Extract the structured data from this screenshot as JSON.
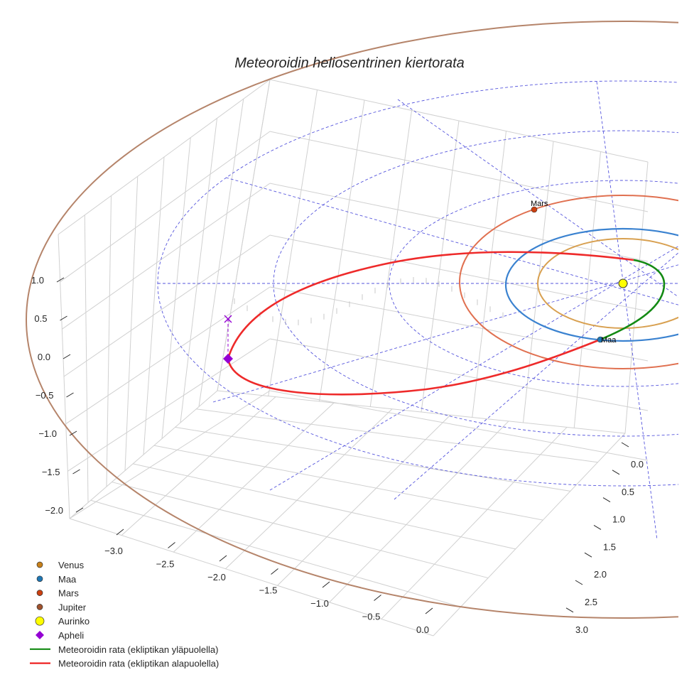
{
  "chart_data": {
    "type": "line",
    "projection": "3d",
    "title": "Meteoroidin heliosentrinen kiertorata",
    "x_ticks": [
      "−3.0",
      "−2.5",
      "−2.0",
      "−1.5",
      "−1.0",
      "−0.5",
      "0.0"
    ],
    "y_ticks": [
      "0.0",
      "0.5",
      "1.0",
      "1.5",
      "2.0",
      "2.5",
      "3.0"
    ],
    "z_ticks": [
      "1.0",
      "0.5",
      "0.0",
      "−0.5",
      "−1.0",
      "−1.5",
      "−2.0"
    ],
    "xlim": [
      -3.3,
      0.0
    ],
    "ylim": [
      0.0,
      3.3
    ],
    "zlim": [
      -2.2,
      1.3
    ],
    "grid": true,
    "legend_position": "bottom-left",
    "point_labels": {
      "mars": "Mars",
      "earth": "Maa"
    },
    "series": [
      {
        "name": "Venus",
        "kind": "marker",
        "color": "#c8801a",
        "orbit_radius_au": 0.72
      },
      {
        "name": "Maa",
        "kind": "marker",
        "color": "#1f77b4",
        "orbit_radius_au": 1.0
      },
      {
        "name": "Mars",
        "kind": "marker",
        "color": "#cc4010",
        "orbit_radius_au": 1.52
      },
      {
        "name": "Jupiter",
        "kind": "marker",
        "color": "#a0522d",
        "orbit_radius_au": 5.2
      },
      {
        "name": "Aurinko",
        "kind": "marker",
        "color": "#ffff00"
      },
      {
        "name": "Apheli",
        "kind": "diamond",
        "color": "#9400d3"
      },
      {
        "name": "Meteoroidin rata (ekliptikan yläpuolella)",
        "kind": "line",
        "color": "#138a13"
      },
      {
        "name": "Meteoroidin rata (ekliptikan alapuolella)",
        "kind": "line",
        "color": "#ee2222"
      }
    ]
  }
}
